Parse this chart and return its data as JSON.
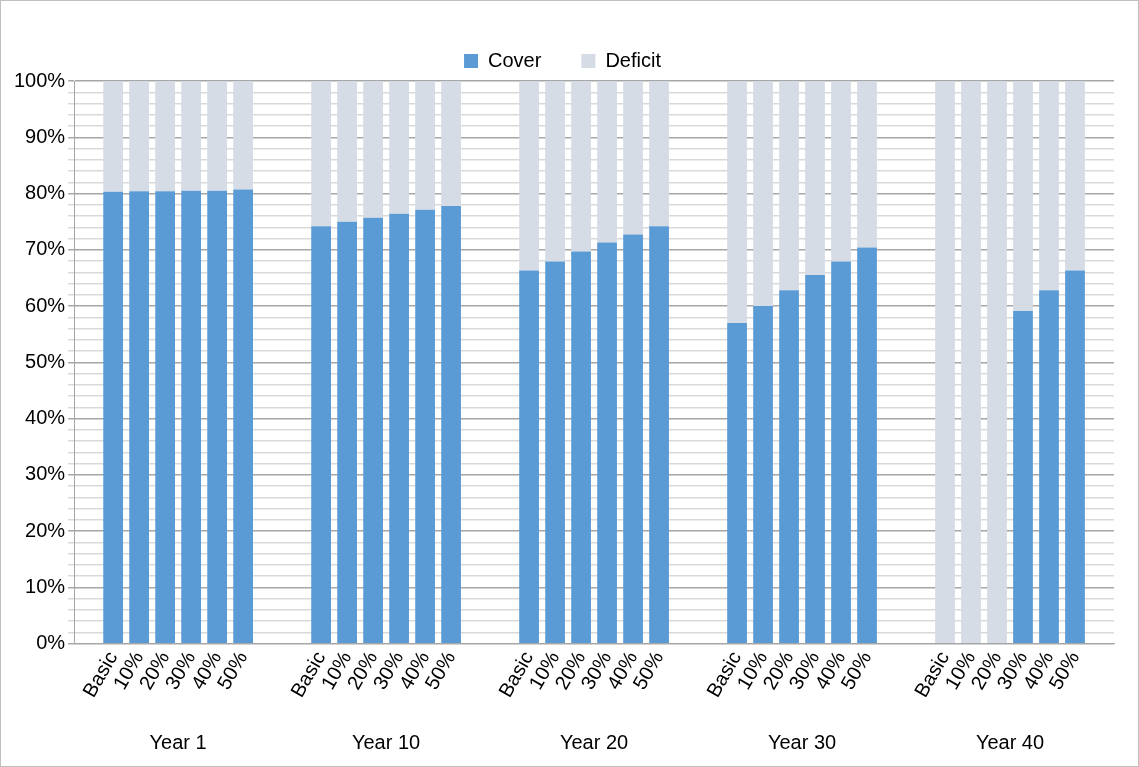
{
  "chart_data": {
    "type": "bar",
    "stacked": true,
    "legend": "top",
    "grid": "y",
    "categories": [
      null,
      "Basic",
      "10%",
      "20%",
      "30%",
      "40%",
      "50%",
      null,
      null,
      "Basic",
      "10%",
      "20%",
      "30%",
      "40%",
      "50%",
      null,
      null,
      "Basic",
      "10%",
      "20%",
      "30%",
      "40%",
      "50%",
      null,
      null,
      "Basic",
      "10%",
      "20%",
      "30%",
      "40%",
      "50%",
      null,
      null,
      "Basic",
      "10%",
      "20%",
      "30%",
      "40%",
      "50%",
      null
    ],
    "series": [
      {
        "name": "Cover",
        "color": "#5b9bd5",
        "values": [
          null,
          80.3,
          80.4,
          80.4,
          80.5,
          80.5,
          80.7,
          null,
          null,
          74.2,
          75.0,
          75.7,
          76.4,
          77.1,
          77.8,
          null,
          null,
          66.3,
          67.9,
          69.7,
          71.3,
          72.7,
          74.2,
          null,
          null,
          57.0,
          60.0,
          62.8,
          65.5,
          67.9,
          70.4,
          null,
          null,
          0,
          0,
          0,
          59.1,
          62.8,
          66.3,
          null
        ]
      },
      {
        "name": "Deficit",
        "color": "#d6dce5",
        "values": [
          null,
          19.7,
          19.6,
          19.6,
          19.5,
          19.5,
          19.3,
          null,
          null,
          25.8,
          25.0,
          24.3,
          23.6,
          22.9,
          22.2,
          null,
          null,
          33.7,
          32.1,
          30.3,
          28.7,
          27.3,
          25.8,
          null,
          null,
          43.0,
          40.0,
          37.2,
          34.5,
          32.1,
          29.6,
          null,
          null,
          100,
          100,
          100,
          40.9,
          37.2,
          33.7,
          null
        ]
      }
    ],
    "ylim": [
      0,
      100
    ],
    "yticks": [
      {
        "value": 0,
        "label": "0%"
      },
      {
        "value": 2,
        "label": null
      },
      {
        "value": 4,
        "label": null
      },
      {
        "value": 6,
        "label": null
      },
      {
        "value": 8,
        "label": null
      },
      {
        "value": 10,
        "label": "10%"
      },
      {
        "value": 12,
        "label": null
      },
      {
        "value": 14,
        "label": null
      },
      {
        "value": 16,
        "label": null
      },
      {
        "value": 18,
        "label": null
      },
      {
        "value": 20,
        "label": "20%"
      },
      {
        "value": 22,
        "label": null
      },
      {
        "value": 24,
        "label": null
      },
      {
        "value": 26,
        "label": null
      },
      {
        "value": 28,
        "label": null
      },
      {
        "value": 30,
        "label": "30%"
      },
      {
        "value": 32,
        "label": null
      },
      {
        "value": 34,
        "label": null
      },
      {
        "value": 36,
        "label": null
      },
      {
        "value": 38,
        "label": null
      },
      {
        "value": 40,
        "label": "40%"
      },
      {
        "value": 42,
        "label": null
      },
      {
        "value": 44,
        "label": null
      },
      {
        "value": 46,
        "label": null
      },
      {
        "value": 48,
        "label": null
      },
      {
        "value": 50,
        "label": "50%"
      },
      {
        "value": 52,
        "label": null
      },
      {
        "value": 54,
        "label": null
      },
      {
        "value": 56,
        "label": null
      },
      {
        "value": 58,
        "label": null
      },
      {
        "value": 60,
        "label": "60%"
      },
      {
        "value": 62,
        "label": null
      },
      {
        "value": 64,
        "label": null
      },
      {
        "value": 66,
        "label": null
      },
      {
        "value": 68,
        "label": null
      },
      {
        "value": 70,
        "label": "70%"
      },
      {
        "value": 72,
        "label": null
      },
      {
        "value": 74,
        "label": null
      },
      {
        "value": 76,
        "label": null
      },
      {
        "value": 78,
        "label": null
      },
      {
        "value": 80,
        "label": "80%"
      },
      {
        "value": 82,
        "label": null
      },
      {
        "value": 84,
        "label": null
      },
      {
        "value": 86,
        "label": null
      },
      {
        "value": 88,
        "label": null
      },
      {
        "value": 90,
        "label": "90%"
      },
      {
        "value": 92,
        "label": null
      },
      {
        "value": 94,
        "label": null
      },
      {
        "value": 96,
        "label": null
      },
      {
        "value": 98,
        "label": null
      },
      {
        "value": 100,
        "label": "100%"
      }
    ],
    "annotations": [
      "Year 1",
      "Year 10",
      "Year 20",
      "Year 30",
      "Year 40"
    ]
  }
}
